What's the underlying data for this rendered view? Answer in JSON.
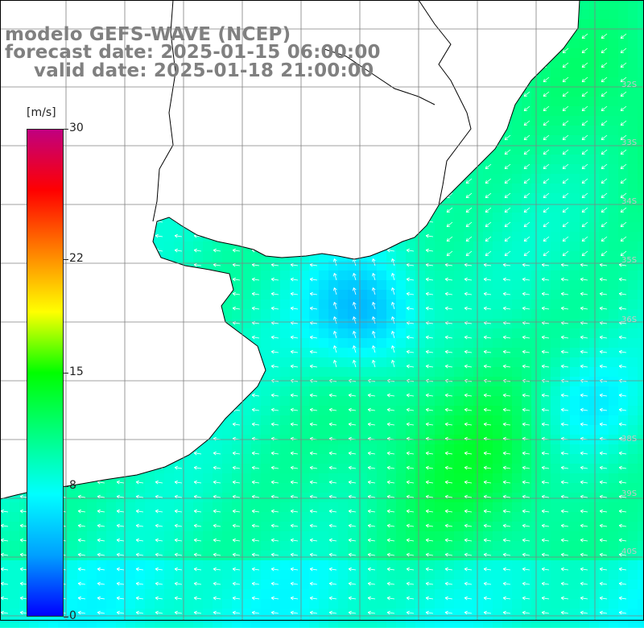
{
  "titles": {
    "model": "modelo GEFS-WAVE (NCEP)",
    "forecast": "forecast date: 2025-01-15 06:00:00",
    "valid": "valid date: 2025-01-18 21:00:00"
  },
  "colorbar": {
    "unit": "[m/s]",
    "ticks": [
      {
        "value": 30,
        "label": "30"
      },
      {
        "value": 22,
        "label": "22"
      },
      {
        "value": 15,
        "label": "15"
      },
      {
        "value": 8,
        "label": "8"
      },
      {
        "value": 0,
        "label": "0"
      }
    ],
    "range": [
      0,
      30
    ],
    "colors": [
      "#0000ff",
      "#00a0ff",
      "#00ffff",
      "#00ff80",
      "#00ff00",
      "#ffff00",
      "#ff8000",
      "#ff0000",
      "#c00080"
    ]
  },
  "lat_labels": [
    "32S",
    "33S",
    "34S",
    "35S",
    "36S",
    "38S",
    "39S",
    "40S"
  ],
  "colors": {
    "land": "#ffffff",
    "coastline": "#000000",
    "grid": "#808080",
    "arrows": "#ffffff",
    "title_text": "#808080"
  }
}
